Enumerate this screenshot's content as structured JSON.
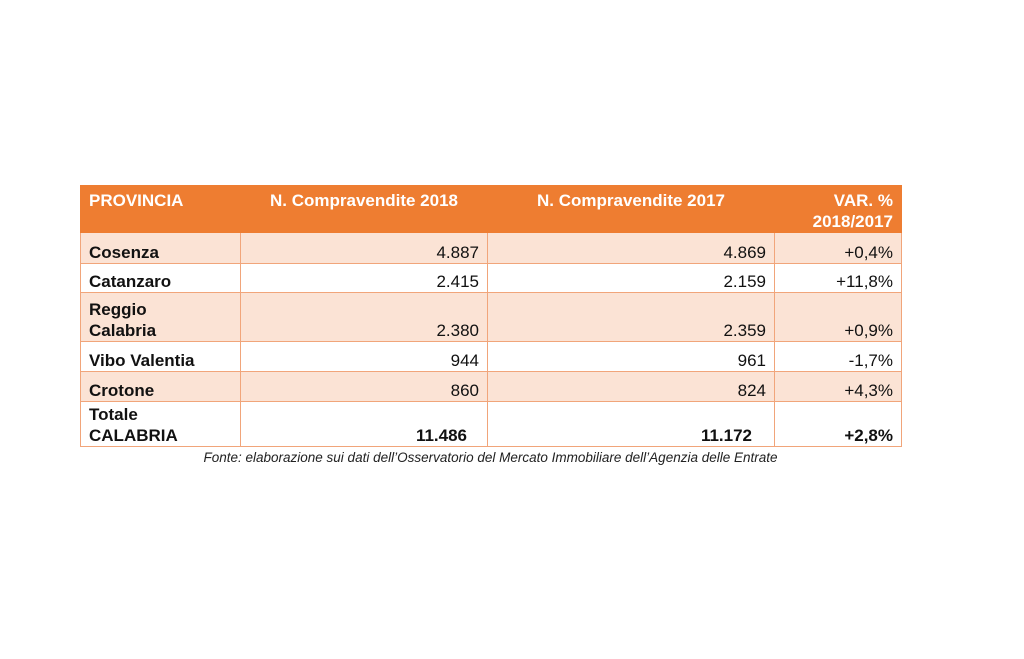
{
  "table": {
    "headers": {
      "provincia": "PROVINCIA",
      "n2018": "N. Compravendite 2018",
      "n2017": "N. Compravendite 2017",
      "var_line1": "VAR. %",
      "var_line2": "2018/2017"
    },
    "rows": [
      {
        "name_line1": "Cosenza",
        "name_line2": "",
        "v2018": "4.887",
        "v2017": "4.869",
        "var": "+0,4%"
      },
      {
        "name_line1": "Catanzaro",
        "name_line2": "",
        "v2018": "2.415",
        "v2017": "2.159",
        "var": "+11,8%"
      },
      {
        "name_line1": "Reggio",
        "name_line2": "Calabria",
        "v2018": "2.380",
        "v2017": "2.359",
        "var": "+0,9%"
      },
      {
        "name_line1": "Vibo Valentia",
        "name_line2": "",
        "v2018": "944",
        "v2017": "961",
        "var": "-1,7%"
      },
      {
        "name_line1": "Crotone",
        "name_line2": "",
        "v2018": "860",
        "v2017": "824",
        "var": "+4,3%"
      }
    ],
    "total": {
      "name_line1": "Totale",
      "name_line2": "CALABRIA",
      "v2018": "11.486",
      "v2017": "11.172",
      "var": "+2,8%"
    }
  },
  "source": "Fonte: elaborazione sui dati dell’Osservatorio del Mercato Immobiliare dell’Agenzia delle Entrate",
  "colors": {
    "header_bg": "#ee7d31",
    "shaded_row": "#fbe3d5",
    "border": "#f1a57a"
  }
}
